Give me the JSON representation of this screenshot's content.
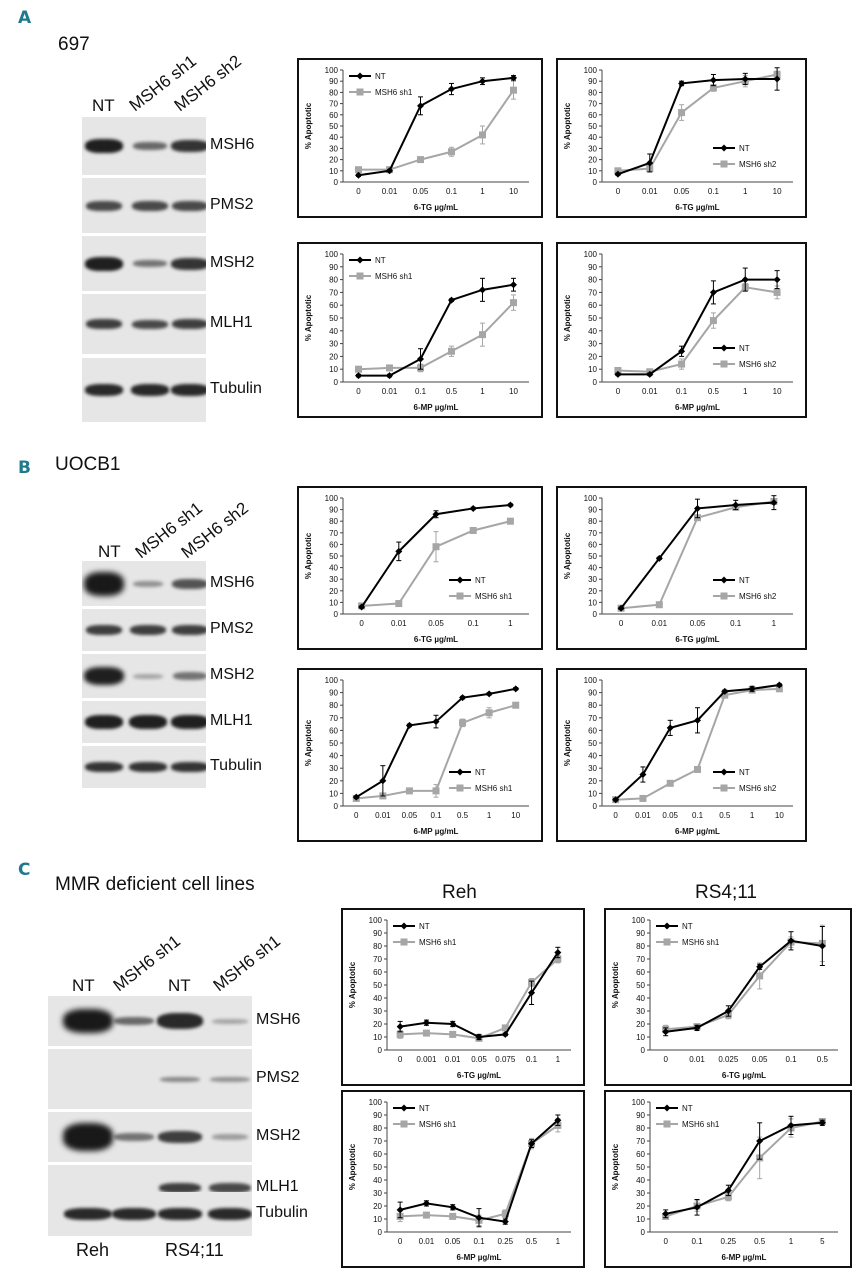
{
  "panels": {
    "A": {
      "letter": "A",
      "cell_line": "697",
      "lanes": [
        "NT",
        "MSH6 sh1",
        "MSH6 sh2"
      ],
      "blots": [
        "MSH6",
        "PMS2",
        "MSH2",
        "MLH1",
        "Tubulin"
      ]
    },
    "B": {
      "letter": "B",
      "cell_line": "UOCB1",
      "lanes": [
        "NT",
        "MSH6 sh1",
        "MSH6 sh2"
      ],
      "blots": [
        "MSH6",
        "PMS2",
        "MSH2",
        "MLH1",
        "Tubulin"
      ]
    },
    "C": {
      "letter": "C",
      "cell_line": "MMR deficient cell lines",
      "lanes": [
        "NT",
        "MSH6 sh1",
        "NT",
        "MSH6 sh1"
      ],
      "blots": [
        "MSH6",
        "PMS2",
        "MSH2",
        "MLH1",
        "Tubulin"
      ],
      "bottom_labels": [
        "Reh",
        "RS4;11"
      ],
      "column_titles": [
        "Reh",
        "RS4;11"
      ]
    }
  },
  "colors": {
    "nt": "#000000",
    "sh": "#a6a6a6",
    "panel_letter": "#1f7a8c"
  },
  "chart_data": [
    {
      "id": "A1",
      "type": "line",
      "categories": [
        "0",
        "0.01",
        "0.05",
        "0.1",
        "1",
        "10"
      ],
      "xlabel": "6-TG µg/mL",
      "ylabel": "% Apoptotic",
      "ylim": [
        0,
        100
      ],
      "legend": "top-left",
      "series": [
        {
          "name": "NT",
          "values": [
            6,
            10,
            68,
            83,
            90,
            93
          ],
          "err": [
            1,
            1,
            8,
            5,
            3,
            2
          ]
        },
        {
          "name": "MSH6 sh1",
          "values": [
            11,
            11,
            20,
            27,
            42,
            82
          ],
          "err": [
            1,
            1,
            2,
            4,
            8,
            8
          ]
        }
      ]
    },
    {
      "id": "A2",
      "type": "line",
      "categories": [
        "0",
        "0.01",
        "0.05",
        "0.1",
        "1",
        "10"
      ],
      "xlabel": "6-TG µg/mL",
      "ylabel": "% Apoptotic",
      "ylim": [
        0,
        100
      ],
      "legend": "bottom-right",
      "series": [
        {
          "name": "NT",
          "values": [
            7,
            17,
            88,
            91,
            92,
            92
          ],
          "err": [
            1,
            8,
            2,
            5,
            5,
            10
          ]
        },
        {
          "name": "MSH6 sh2",
          "values": [
            10,
            12,
            62,
            84,
            90,
            96
          ],
          "err": [
            2,
            3,
            7,
            3,
            5,
            3
          ]
        }
      ]
    },
    {
      "id": "A3",
      "type": "line",
      "categories": [
        "0",
        "0.01",
        "0.1",
        "0.5",
        "1",
        "10"
      ],
      "xlabel": "6-MP µg/mL",
      "ylabel": "% Apoptotic",
      "ylim": [
        0,
        100
      ],
      "legend": "top-left",
      "series": [
        {
          "name": "NT",
          "values": [
            5,
            5,
            18,
            64,
            72,
            76
          ],
          "err": [
            1,
            1,
            8,
            1,
            9,
            5
          ]
        },
        {
          "name": "MSH6 sh1",
          "values": [
            10,
            11,
            11,
            24,
            37,
            62
          ],
          "err": [
            2,
            2,
            3,
            4,
            9,
            6
          ]
        }
      ]
    },
    {
      "id": "A4",
      "type": "line",
      "categories": [
        "0",
        "0.01",
        "0.1",
        "0.5",
        "1",
        "10"
      ],
      "xlabel": "6-MP µg/mL",
      "ylabel": "% Apoptotic",
      "ylim": [
        0,
        100
      ],
      "legend": "bottom-right",
      "series": [
        {
          "name": "NT",
          "values": [
            6,
            6,
            24,
            70,
            80,
            80
          ],
          "err": [
            1,
            1,
            4,
            9,
            9,
            7
          ]
        },
        {
          "name": "MSH6 sh2",
          "values": [
            9,
            8,
            14,
            48,
            74,
            70
          ],
          "err": [
            1,
            1,
            4,
            6,
            3,
            5
          ]
        }
      ]
    },
    {
      "id": "B1",
      "type": "line",
      "categories": [
        "0",
        "0.01",
        "0.05",
        "0.1",
        "1"
      ],
      "xlabel": "6-TG µg/mL",
      "ylabel": "% Apoptotic",
      "ylim": [
        0,
        100
      ],
      "legend": "bottom-right",
      "series": [
        {
          "name": "NT",
          "values": [
            6,
            54,
            86,
            91,
            94
          ],
          "err": [
            1,
            8,
            3,
            1,
            1
          ]
        },
        {
          "name": "MSH6 sh1",
          "values": [
            7,
            9,
            58,
            72,
            80
          ],
          "err": [
            1,
            1,
            13,
            2,
            1
          ]
        }
      ]
    },
    {
      "id": "B2",
      "type": "line",
      "categories": [
        "0",
        "0.01",
        "0.05",
        "0.1",
        "1"
      ],
      "xlabel": "6-TG µg/mL",
      "ylabel": "% Apoptotic",
      "ylim": [
        0,
        100
      ],
      "legend": "bottom-right",
      "series": [
        {
          "name": "NT",
          "values": [
            5,
            48,
            91,
            94,
            96
          ],
          "err": [
            1,
            1,
            8,
            4,
            6
          ]
        },
        {
          "name": "MSH6 sh2",
          "values": [
            5,
            8,
            83,
            92,
            97
          ],
          "err": [
            1,
            1,
            1,
            2,
            2
          ]
        }
      ]
    },
    {
      "id": "B3",
      "type": "line",
      "categories": [
        "0",
        "0.01",
        "0.05",
        "0.1",
        "0.5",
        "1",
        "10"
      ],
      "xlabel": "6-MP µg/mL",
      "ylabel": "% Apoptotic",
      "ylim": [
        0,
        100
      ],
      "legend": "bottom-right",
      "series": [
        {
          "name": "NT",
          "values": [
            7,
            20,
            64,
            67,
            86,
            89,
            93
          ],
          "err": [
            1,
            12,
            1,
            5,
            1,
            1,
            1
          ]
        },
        {
          "name": "MSH6 sh1",
          "values": [
            6,
            8,
            12,
            12,
            66,
            74,
            80
          ],
          "err": [
            1,
            1,
            1,
            5,
            3,
            4,
            2
          ]
        }
      ]
    },
    {
      "id": "B4",
      "type": "line",
      "categories": [
        "0",
        "0.01",
        "0.05",
        "0.1",
        "0.5",
        "1",
        "10"
      ],
      "xlabel": "6-MP µg/mL",
      "ylabel": "% Apoptotic",
      "ylim": [
        0,
        100
      ],
      "legend": "bottom-right",
      "series": [
        {
          "name": "NT",
          "values": [
            5,
            25,
            62,
            68,
            91,
            93,
            96
          ],
          "err": [
            1,
            6,
            6,
            10,
            1,
            2,
            1
          ]
        },
        {
          "name": "MSH6 sh2",
          "values": [
            5,
            6,
            18,
            29,
            88,
            92,
            93
          ],
          "err": [
            1,
            1,
            1,
            1,
            2,
            1,
            1
          ]
        }
      ]
    },
    {
      "id": "C1",
      "type": "line",
      "categories": [
        "0",
        "0.001",
        "0.01",
        "0.05",
        "0.075",
        "0.1",
        "1"
      ],
      "xlabel": "6-TG µg/mL",
      "ylabel": "% Apoptotic",
      "ylim": [
        0,
        100
      ],
      "legend": "top-left",
      "series": [
        {
          "name": "NT",
          "values": [
            18,
            21,
            20,
            10,
            12,
            44,
            75
          ],
          "err": [
            4,
            2,
            2,
            2,
            1,
            9,
            4
          ]
        },
        {
          "name": "MSH6 sh1",
          "values": [
            12,
            13,
            12,
            9,
            17,
            52,
            70
          ],
          "err": [
            3,
            2,
            2,
            2,
            2,
            3,
            3
          ]
        }
      ]
    },
    {
      "id": "C2",
      "type": "line",
      "categories": [
        "0",
        "0.01",
        "0.025",
        "0.05",
        "0.1",
        "0.5"
      ],
      "xlabel": "6-TG µg/mL",
      "ylabel": "% Apoptotic",
      "ylim": [
        0,
        100
      ],
      "legend": "top-left",
      "series": [
        {
          "name": "NT",
          "values": [
            14,
            17,
            30,
            64,
            84,
            80
          ],
          "err": [
            3,
            2,
            4,
            2,
            7,
            15
          ]
        },
        {
          "name": "MSH6 sh1",
          "values": [
            16,
            18,
            27,
            57,
            83,
            82
          ],
          "err": [
            3,
            2,
            3,
            10,
            4,
            14
          ]
        }
      ]
    },
    {
      "id": "C3",
      "type": "line",
      "categories": [
        "0",
        "0.01",
        "0.05",
        "0.1",
        "0.25",
        "0.5",
        "1"
      ],
      "xlabel": "6-MP µg/mL",
      "ylabel": "% Apoptotic",
      "ylim": [
        0,
        100
      ],
      "legend": "top-left",
      "series": [
        {
          "name": "NT",
          "values": [
            17,
            22,
            19,
            11,
            8,
            68,
            86
          ],
          "err": [
            6,
            2,
            2,
            7,
            2,
            3,
            4
          ]
        },
        {
          "name": "MSH6 sh1",
          "values": [
            12,
            13,
            12,
            9,
            14,
            68,
            82
          ],
          "err": [
            4,
            2,
            2,
            4,
            3,
            4,
            5
          ]
        }
      ]
    },
    {
      "id": "C4",
      "type": "line",
      "categories": [
        "0",
        "0.1",
        "0.25",
        "0.5",
        "1",
        "5"
      ],
      "xlabel": "6-MP µg/mL",
      "ylabel": "% Apoptotic",
      "ylim": [
        0,
        100
      ],
      "legend": "top-left",
      "series": [
        {
          "name": "NT",
          "values": [
            14,
            19,
            32,
            70,
            82,
            84
          ],
          "err": [
            3,
            6,
            4,
            14,
            7,
            2
          ]
        },
        {
          "name": "MSH6 sh1",
          "values": [
            12,
            20,
            27,
            57,
            80,
            85
          ],
          "err": [
            2,
            4,
            3,
            16,
            7,
            2
          ]
        }
      ]
    }
  ]
}
